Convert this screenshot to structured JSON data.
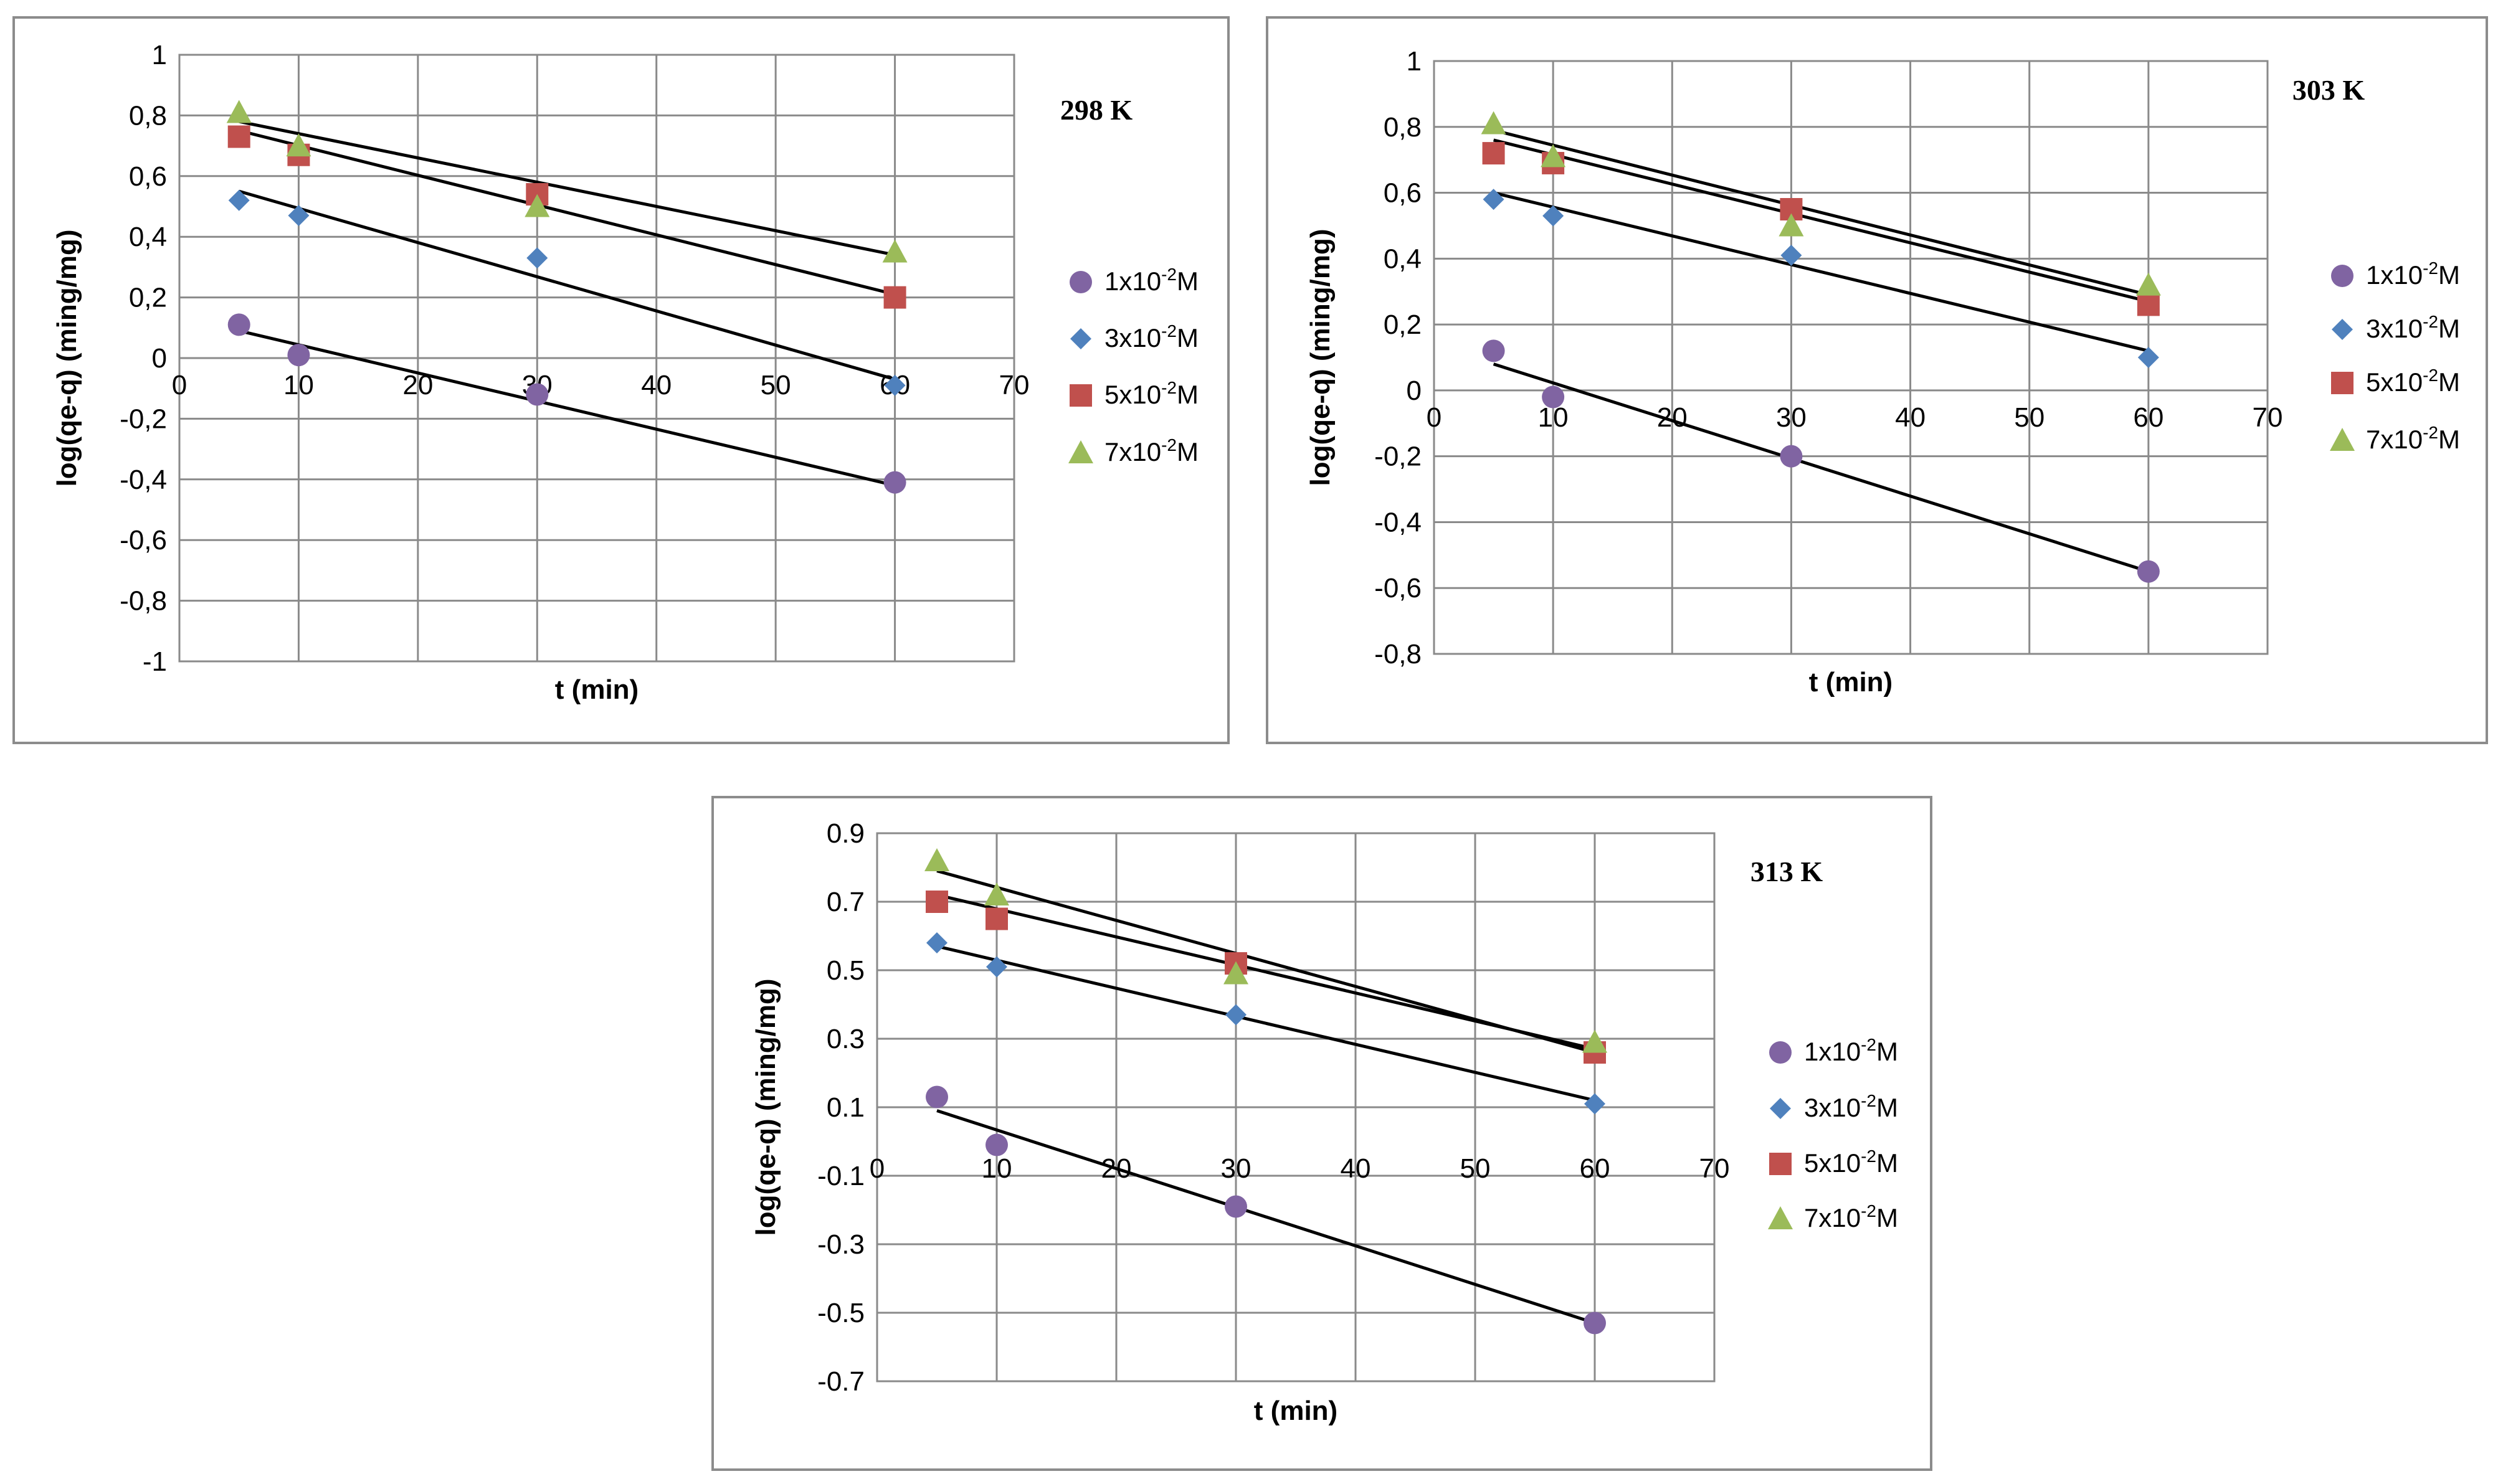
{
  "chart_data": [
    {
      "type": "scatter",
      "title": "298 K",
      "xlabel": "t (min)",
      "ylabel": "log(qe-q) (ming/mg)",
      "xlim": [
        0,
        70
      ],
      "ylim": [
        -1,
        1
      ],
      "xticks": [
        0,
        10,
        20,
        30,
        40,
        50,
        60,
        70
      ],
      "yticks": [
        1,
        0.8,
        0.6,
        0.4,
        0.2,
        0,
        -0.2,
        -0.4,
        -0.6,
        -0.8,
        -1
      ],
      "ytick_labels": [
        "1",
        "0,8",
        "0,6",
        "0,4",
        "0,2",
        "0",
        "-0,2",
        "-0,4",
        "-0,6",
        "-0,8",
        "-1"
      ],
      "x": [
        5,
        10,
        30,
        60
      ],
      "series": [
        {
          "name": "1x10-2M",
          "marker": "circle",
          "color": "#8064a2",
          "values": [
            0.11,
            0.01,
            -0.12,
            -0.41
          ],
          "fit": [
            0.09,
            -0.42
          ]
        },
        {
          "name": "3x10-2M",
          "marker": "diamond",
          "color": "#4f81bd",
          "values": [
            0.52,
            0.47,
            0.33,
            -0.09
          ],
          "fit": [
            0.55,
            -0.07
          ]
        },
        {
          "name": "5x10-2M",
          "marker": "square",
          "color": "#c0504d",
          "values": [
            0.73,
            0.67,
            0.54,
            0.2
          ],
          "fit": [
            0.75,
            0.21
          ]
        },
        {
          "name": "7x10-2M",
          "marker": "triangle",
          "color": "#9bbb59",
          "values": [
            0.81,
            0.7,
            0.5,
            0.35
          ],
          "fit": [
            0.78,
            0.34
          ]
        }
      ]
    },
    {
      "type": "scatter",
      "title": "303 K",
      "xlabel": "t (min)",
      "ylabel": "log(qe-q) (ming/mg)",
      "xlim": [
        0,
        70
      ],
      "ylim": [
        -0.8,
        1
      ],
      "xticks": [
        0,
        10,
        20,
        30,
        40,
        50,
        60,
        70
      ],
      "yticks": [
        1,
        0.8,
        0.6,
        0.4,
        0.2,
        0,
        -0.2,
        -0.4,
        -0.6,
        -0.8
      ],
      "ytick_labels": [
        "1",
        "0,8",
        "0,6",
        "0,4",
        "0,2",
        "0",
        "-0,2",
        "-0,4",
        "-0,6",
        "-0,8"
      ],
      "x": [
        5,
        10,
        30,
        60
      ],
      "series": [
        {
          "name": "1x10-2M",
          "marker": "circle",
          "color": "#8064a2",
          "values": [
            0.12,
            -0.02,
            -0.2,
            -0.55
          ],
          "fit": [
            0.08,
            -0.55
          ]
        },
        {
          "name": "3x10-2M",
          "marker": "diamond",
          "color": "#4f81bd",
          "values": [
            0.58,
            0.53,
            0.41,
            0.1
          ],
          "fit": [
            0.6,
            0.12
          ]
        },
        {
          "name": "5x10-2M",
          "marker": "square",
          "color": "#c0504d",
          "values": [
            0.72,
            0.69,
            0.55,
            0.26
          ],
          "fit": [
            0.76,
            0.27
          ]
        },
        {
          "name": "7x10-2M",
          "marker": "triangle",
          "color": "#9bbb59",
          "values": [
            0.81,
            0.71,
            0.5,
            0.32
          ],
          "fit": [
            0.79,
            0.29
          ]
        }
      ]
    },
    {
      "type": "scatter",
      "title": "313 K",
      "xlabel": "t (min)",
      "ylabel": "log(qe-q) (ming/mg)",
      "xlim": [
        0,
        70
      ],
      "ylim": [
        -0.7,
        0.9
      ],
      "xticks": [
        0,
        10,
        20,
        30,
        40,
        50,
        60,
        70
      ],
      "yticks": [
        0.9,
        0.7,
        0.5,
        0.3,
        0.1,
        -0.1,
        -0.3,
        -0.5,
        -0.7
      ],
      "ytick_labels": [
        "0.9",
        "0.7",
        "0.5",
        "0.3",
        "0.1",
        "-0.1",
        "-0.3",
        "-0.5",
        "-0.7"
      ],
      "x": [
        5,
        10,
        30,
        60
      ],
      "series": [
        {
          "name": "1x10-2M",
          "marker": "circle",
          "color": "#8064a2",
          "values": [
            0.13,
            -0.01,
            -0.19,
            -0.53
          ],
          "fit": [
            0.09,
            -0.53
          ]
        },
        {
          "name": "3x10-2M",
          "marker": "diamond",
          "color": "#4f81bd",
          "values": [
            0.58,
            0.51,
            0.37,
            0.11
          ],
          "fit": [
            0.57,
            0.12
          ]
        },
        {
          "name": "5x10-2M",
          "marker": "square",
          "color": "#c0504d",
          "values": [
            0.7,
            0.65,
            0.52,
            0.26
          ],
          "fit": [
            0.72,
            0.27
          ]
        },
        {
          "name": "7x10-2M",
          "marker": "triangle",
          "color": "#9bbb59",
          "values": [
            0.82,
            0.72,
            0.49,
            0.29
          ],
          "fit": [
            0.79,
            0.26
          ]
        }
      ]
    }
  ]
}
